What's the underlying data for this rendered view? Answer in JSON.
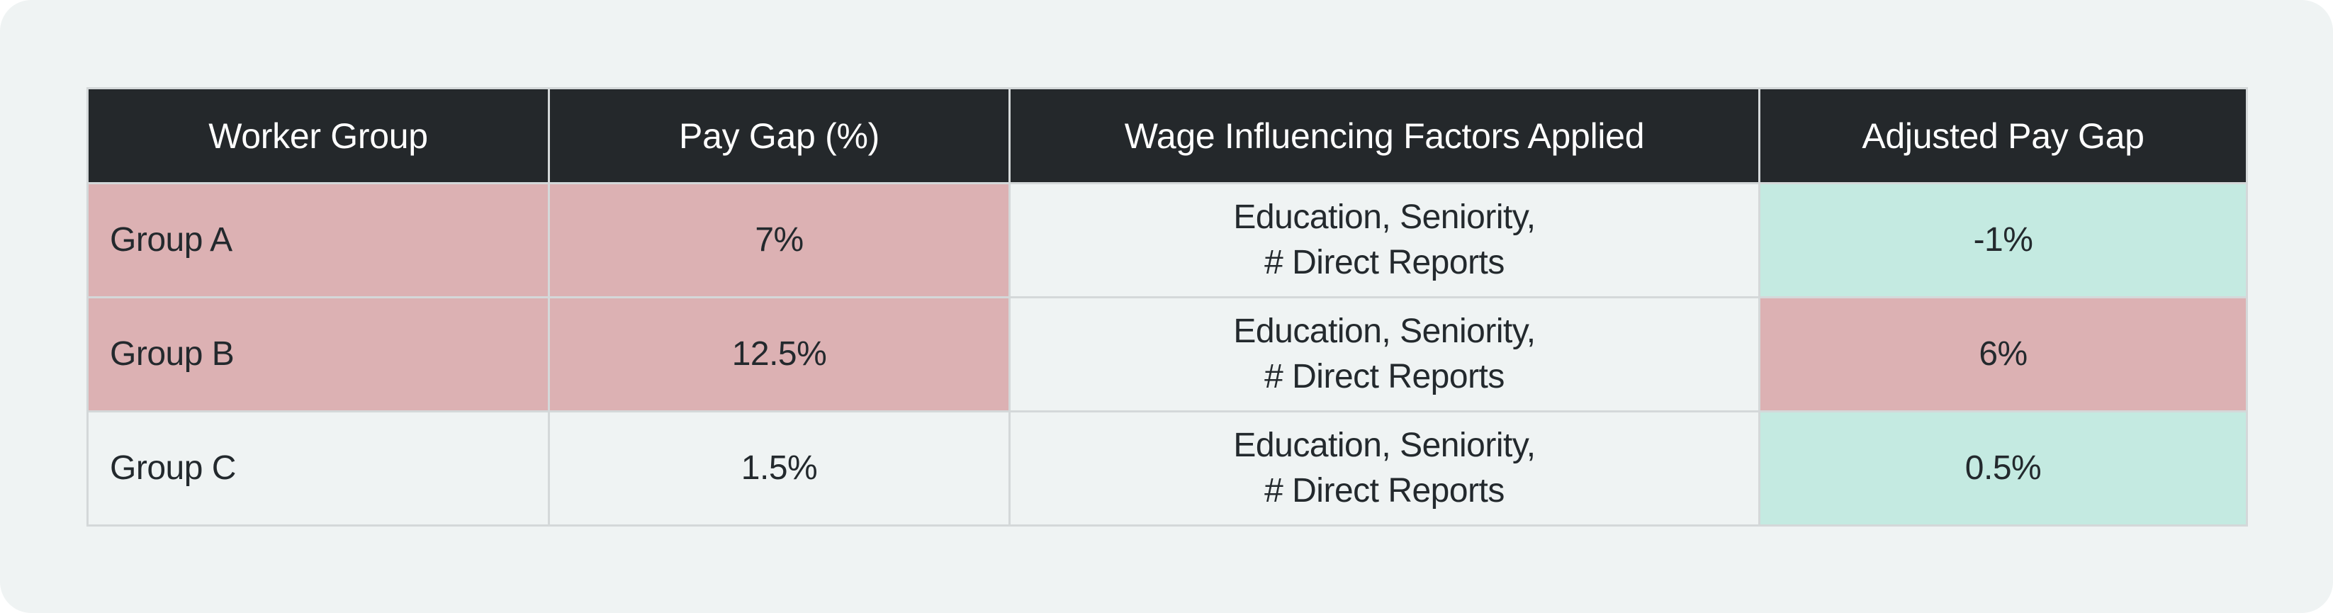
{
  "table": {
    "headers": [
      "Worker Group",
      "Pay Gap (%)",
      "Wage Influencing Factors Applied",
      "Adjusted Pay Gap"
    ],
    "rows": [
      {
        "group": "Group A",
        "pay_gap": "7%",
        "factors_line1": "Education, Seniority,",
        "factors_line2": "# Direct Reports",
        "adjusted": "-1%"
      },
      {
        "group": "Group B",
        "pay_gap": "12.5%",
        "factors_line1": "Education, Seniority,",
        "factors_line2": "# Direct Reports",
        "adjusted": "6%"
      },
      {
        "group": "Group C",
        "pay_gap": "1.5%",
        "factors_line1": "Education, Seniority,",
        "factors_line2": "# Direct Reports",
        "adjusted": "0.5%"
      }
    ]
  },
  "colors": {
    "header_bg": "#24282b",
    "highlight_red": "#dcb1b3",
    "highlight_green": "#c4eae1",
    "card_bg": "#eff3f3"
  }
}
